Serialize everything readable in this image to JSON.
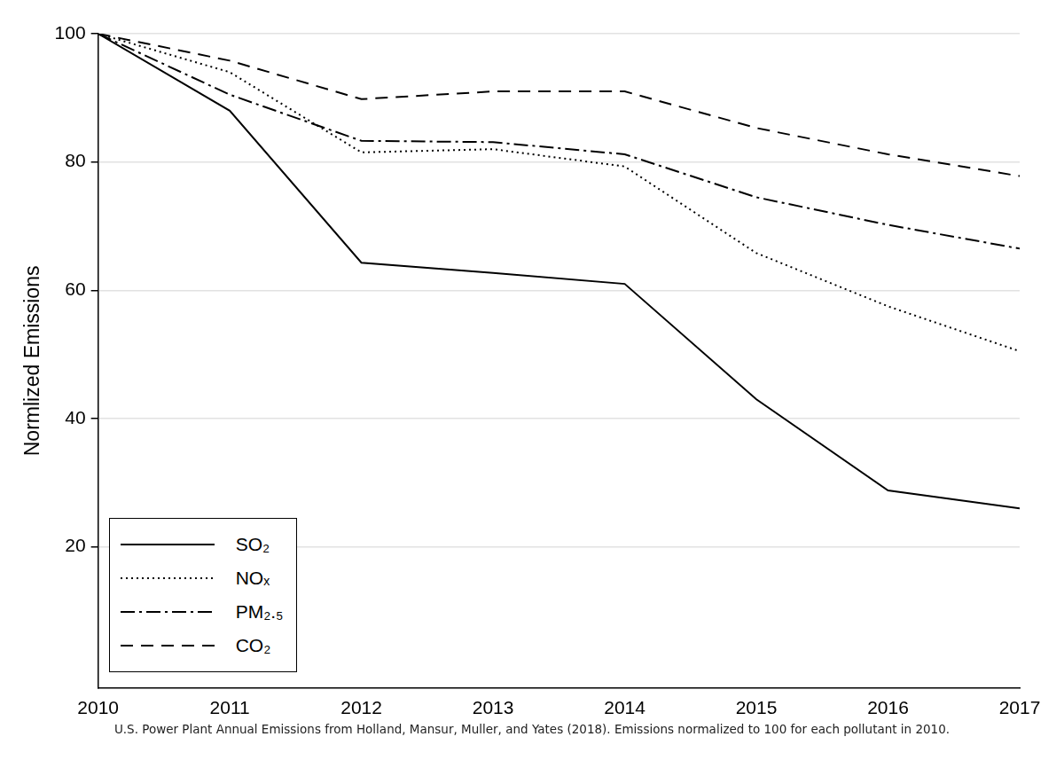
{
  "chart_data": {
    "type": "line",
    "y_label": "Normlized Emissions",
    "caption": "U.S. Power Plant Annual Emissions from Holland, Mansur, Muller, and Yates (2018). Emissions normalized to 100 for each pollutant in 2010.",
    "x": [
      2010,
      2011,
      2012,
      2013,
      2014,
      2015,
      2016,
      2017
    ],
    "series": [
      {
        "name": "SO₂",
        "color": "#000000",
        "line_style": "solid",
        "values": [
          100,
          88,
          64.3,
          62.7,
          61,
          43,
          28.8,
          26
        ]
      },
      {
        "name": "NOₓ",
        "color": "#000000",
        "line_style": "dotted",
        "values": [
          100,
          94,
          81.5,
          82,
          79.3,
          65.8,
          57.5,
          50.5
        ]
      },
      {
        "name": "PM₂.₅",
        "color": "#000000",
        "line_style": "dashdot",
        "values": [
          100,
          90.5,
          83.3,
          83.1,
          81.2,
          74.5,
          70.2,
          66.5
        ]
      },
      {
        "name": "CO₂",
        "color": "#000000",
        "line_style": "dashed",
        "values": [
          100,
          95.8,
          89.8,
          91,
          91,
          85.3,
          81.2,
          77.8
        ]
      }
    ],
    "xlim": [
      2010,
      2017
    ],
    "xticks": [
      2010,
      2011,
      2012,
      2013,
      2014,
      2015,
      2016,
      2017
    ],
    "ylim": [
      -2,
      100
    ],
    "yticks": [
      20,
      40,
      60,
      80,
      100
    ],
    "grid": true,
    "legend": "lower left"
  }
}
